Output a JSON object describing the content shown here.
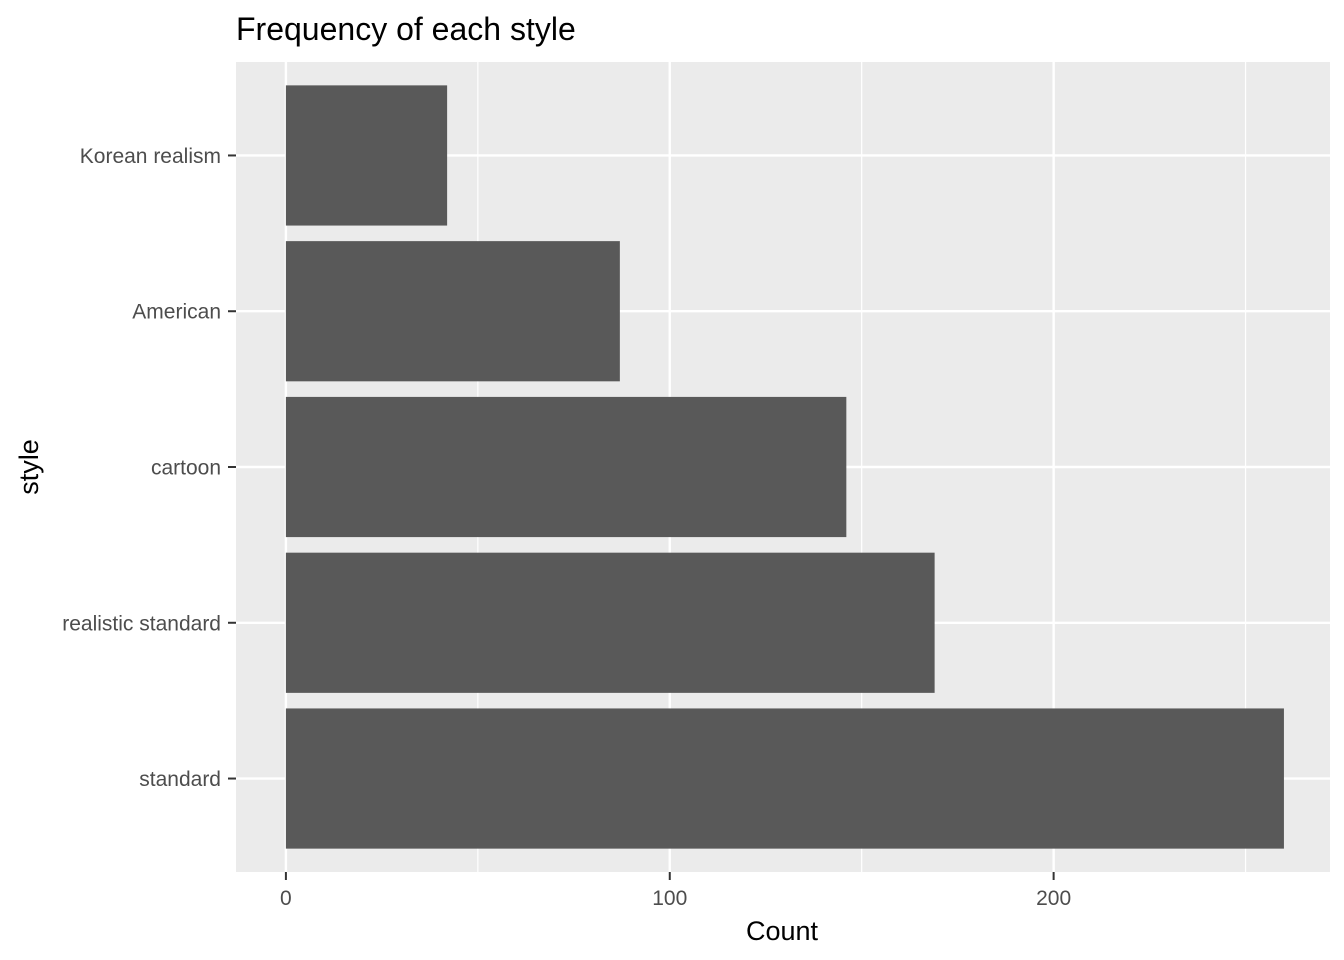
{
  "chart_data": {
    "type": "bar",
    "orientation": "horizontal",
    "title": "Frequency of each style",
    "xlabel": "Count",
    "ylabel": "style",
    "categories": [
      "Korean realism",
      "American",
      "cartoon",
      "realistic standard",
      "standard"
    ],
    "values": [
      42,
      87,
      146,
      169,
      260
    ],
    "xlim": [
      -13,
      272
    ],
    "x_ticks": [
      0,
      100,
      200
    ],
    "x_minor_ticks": [
      50,
      150,
      250
    ],
    "grid": true,
    "legend": "none",
    "colors": {
      "panel_background": "#ebebeb",
      "grid_line": "#ffffff",
      "bar_fill": "#595959",
      "tick_label": "#4d4d4d",
      "tick_mark": "#333333",
      "title": "#000000"
    }
  }
}
